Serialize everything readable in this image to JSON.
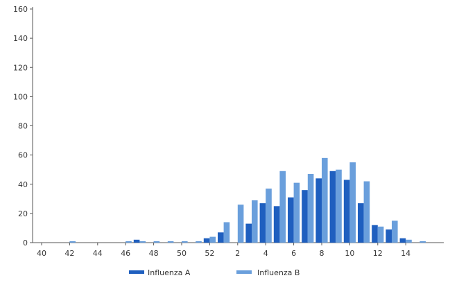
{
  "chart_data": {
    "type": "bar",
    "categories": [
      "40",
      "41",
      "42",
      "43",
      "44",
      "45",
      "46",
      "47",
      "48",
      "49",
      "50",
      "51",
      "52",
      "1",
      "2",
      "3",
      "4",
      "5",
      "6",
      "7",
      "8",
      "9",
      "10",
      "11",
      "12",
      "13",
      "14",
      "15"
    ],
    "x_tick_labels": [
      "40",
      "42",
      "44",
      "46",
      "48",
      "50",
      "52",
      "2",
      "4",
      "6",
      "8",
      "10",
      "12",
      "14"
    ],
    "y_tick_labels": [
      "0",
      "20",
      "40",
      "60",
      "80",
      "100",
      "120",
      "140",
      "160"
    ],
    "ylim": [
      0,
      160
    ],
    "series": [
      {
        "name": "Influenza A",
        "color": "#1f5fbf",
        "values": [
          0,
          0,
          0,
          0,
          0,
          0,
          0,
          2,
          0,
          0,
          0,
          0,
          3,
          7,
          0,
          13,
          27,
          25,
          31,
          36,
          44,
          49,
          43,
          27,
          12,
          9,
          3,
          0
        ]
      },
      {
        "name": "Influenza B",
        "color": "#6a9fdc",
        "values": [
          0,
          0,
          1,
          0,
          0,
          0,
          1,
          1,
          1,
          1,
          1,
          1,
          4,
          14,
          26,
          29,
          37,
          49,
          41,
          47,
          58,
          50,
          55,
          42,
          11,
          15,
          2,
          1
        ]
      }
    ],
    "legend_position": "bottom-center",
    "grid": false
  }
}
